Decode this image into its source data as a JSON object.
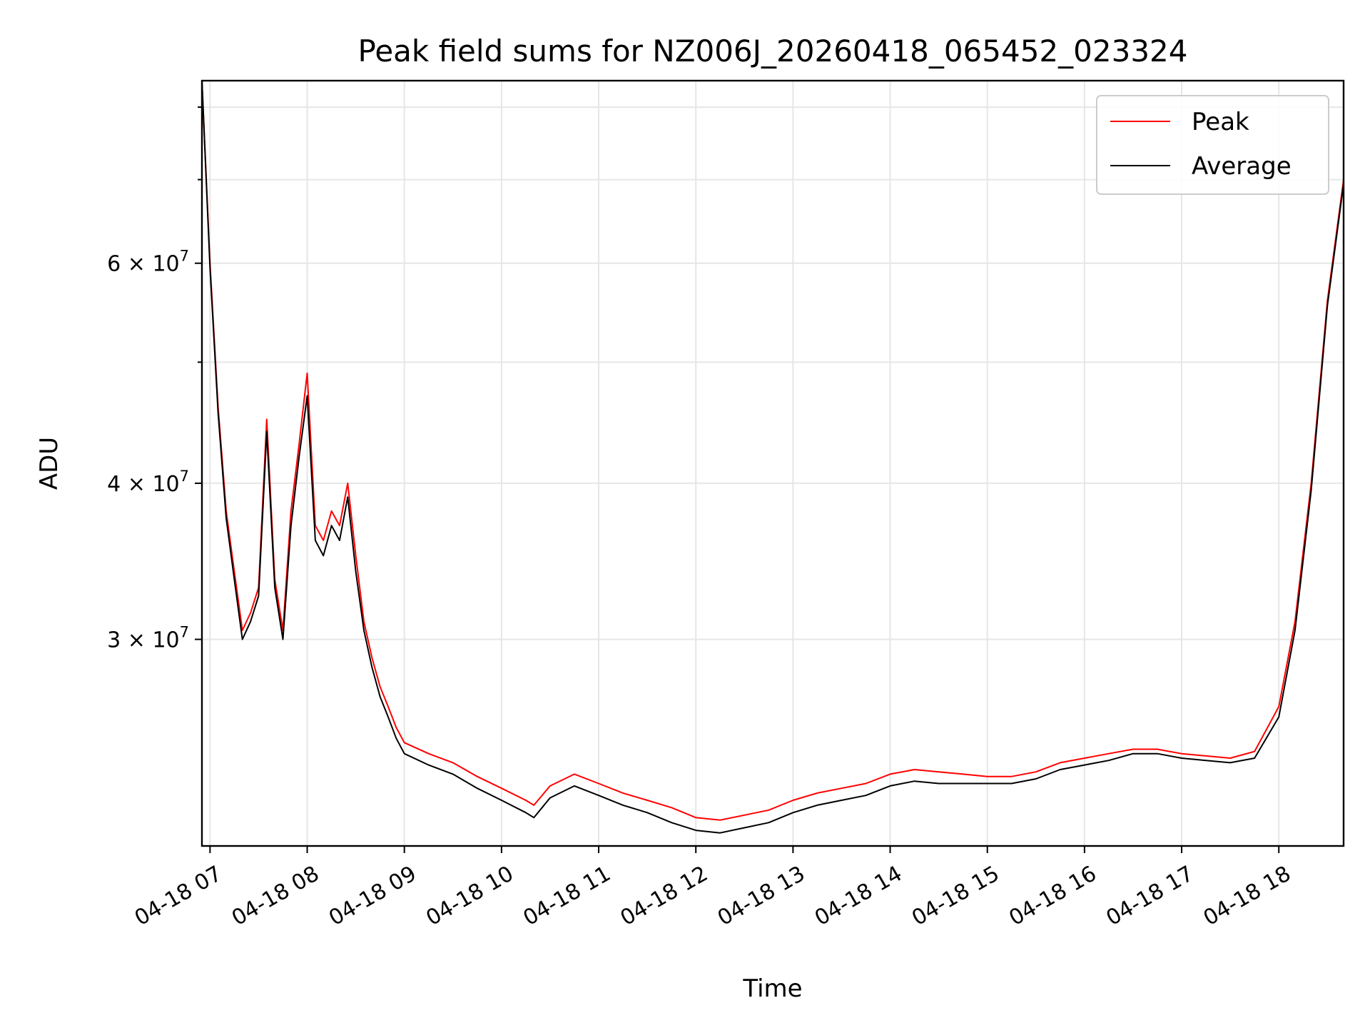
{
  "chart_data": {
    "type": "line",
    "title": "Peak field sums for NZ006J_20260418_065452_023324",
    "xlabel": "Time",
    "ylabel": "ADU",
    "yscale": "log",
    "grid": true,
    "legend_position": "top-right",
    "xlim": [
      "2026-04-18 06:55",
      "2026-04-18 18:40"
    ],
    "ylim": [
      20500000,
      84000000
    ],
    "x_tick_labels": [
      {
        "t": "2026-04-18 07:00",
        "label": "04-18 07"
      },
      {
        "t": "2026-04-18 08:00",
        "label": "04-18 08"
      },
      {
        "t": "2026-04-18 09:00",
        "label": "04-18 09"
      },
      {
        "t": "2026-04-18 10:00",
        "label": "04-18 10"
      },
      {
        "t": "2026-04-18 11:00",
        "label": "04-18 11"
      },
      {
        "t": "2026-04-18 12:00",
        "label": "04-18 12"
      },
      {
        "t": "2026-04-18 13:00",
        "label": "04-18 13"
      },
      {
        "t": "2026-04-18 14:00",
        "label": "04-18 14"
      },
      {
        "t": "2026-04-18 15:00",
        "label": "04-18 15"
      },
      {
        "t": "2026-04-18 16:00",
        "label": "04-18 16"
      },
      {
        "t": "2026-04-18 17:00",
        "label": "04-18 17"
      },
      {
        "t": "2026-04-18 18:00",
        "label": "04-18 18"
      }
    ],
    "y_major_ticks": [
      {
        "value": 30000000,
        "mantissa": "3",
        "exponent": "7"
      },
      {
        "value": 40000000,
        "mantissa": "4",
        "exponent": "7"
      },
      {
        "value": 60000000,
        "mantissa": "6",
        "exponent": "7"
      }
    ],
    "y_minor_ticks": [
      50000000,
      70000000,
      80000000
    ],
    "series": [
      {
        "name": "Peak",
        "color": "#ff0000",
        "x": [
          "06:55",
          "07:00",
          "07:05",
          "07:10",
          "07:15",
          "07:20",
          "07:25",
          "07:30",
          "07:35",
          "07:40",
          "07:45",
          "07:50",
          "07:55",
          "08:00",
          "08:05",
          "08:10",
          "08:15",
          "08:20",
          "08:25",
          "08:30",
          "08:35",
          "08:40",
          "08:45",
          "08:50",
          "08:55",
          "09:00",
          "09:15",
          "09:30",
          "09:45",
          "10:00",
          "10:15",
          "10:20",
          "10:30",
          "10:45",
          "11:00",
          "11:15",
          "11:30",
          "11:45",
          "12:00",
          "12:15",
          "12:30",
          "12:45",
          "13:00",
          "13:15",
          "13:30",
          "13:45",
          "14:00",
          "14:15",
          "14:30",
          "14:45",
          "15:00",
          "15:15",
          "15:30",
          "15:45",
          "16:00",
          "16:15",
          "16:30",
          "16:45",
          "17:00",
          "17:15",
          "17:30",
          "17:45",
          "18:00",
          "18:10",
          "18:20",
          "18:30",
          "18:40"
        ],
        "values": [
          84000000,
          60000000,
          46000000,
          38000000,
          34000000,
          30500000,
          31500000,
          33000000,
          45000000,
          33500000,
          30500000,
          38000000,
          43000000,
          49000000,
          37000000,
          36000000,
          38000000,
          37000000,
          40000000,
          35000000,
          31000000,
          29000000,
          27500000,
          26500000,
          25500000,
          24800000,
          24300000,
          23900000,
          23300000,
          22800000,
          22300000,
          22100000,
          22900000,
          23400000,
          23000000,
          22600000,
          22300000,
          22000000,
          21600000,
          21500000,
          21700000,
          21900000,
          22300000,
          22600000,
          22800000,
          23000000,
          23400000,
          23600000,
          23500000,
          23400000,
          23300000,
          23300000,
          23500000,
          23900000,
          24100000,
          24300000,
          24500000,
          24500000,
          24300000,
          24200000,
          24100000,
          24400000,
          26500000,
          31000000,
          40000000,
          56000000,
          70000000
        ]
      },
      {
        "name": "Average",
        "color": "#000000",
        "x": [
          "06:55",
          "07:00",
          "07:05",
          "07:10",
          "07:15",
          "07:20",
          "07:25",
          "07:30",
          "07:35",
          "07:40",
          "07:45",
          "07:50",
          "07:55",
          "08:00",
          "08:05",
          "08:10",
          "08:15",
          "08:20",
          "08:25",
          "08:30",
          "08:35",
          "08:40",
          "08:45",
          "08:50",
          "08:55",
          "09:00",
          "09:15",
          "09:30",
          "09:45",
          "10:00",
          "10:15",
          "10:20",
          "10:30",
          "10:45",
          "11:00",
          "11:15",
          "11:30",
          "11:45",
          "12:00",
          "12:15",
          "12:30",
          "12:45",
          "13:00",
          "13:15",
          "13:30",
          "13:45",
          "14:00",
          "14:15",
          "14:30",
          "14:45",
          "15:00",
          "15:15",
          "15:30",
          "15:45",
          "16:00",
          "16:15",
          "16:30",
          "16:45",
          "17:00",
          "17:15",
          "17:30",
          "17:45",
          "18:00",
          "18:10",
          "18:20",
          "18:30",
          "18:40"
        ],
        "values": [
          84000000,
          59500000,
          45500000,
          37500000,
          33500000,
          30000000,
          31000000,
          32500000,
          44000000,
          33000000,
          30000000,
          37000000,
          42000000,
          47000000,
          36000000,
          35000000,
          37000000,
          36000000,
          39000000,
          34000000,
          30500000,
          28500000,
          27000000,
          26000000,
          25000000,
          24300000,
          23800000,
          23400000,
          22800000,
          22300000,
          21800000,
          21600000,
          22400000,
          22900000,
          22500000,
          22100000,
          21800000,
          21400000,
          21100000,
          21000000,
          21200000,
          21400000,
          21800000,
          22100000,
          22300000,
          22500000,
          22900000,
          23100000,
          23000000,
          23000000,
          23000000,
          23000000,
          23200000,
          23600000,
          23800000,
          24000000,
          24300000,
          24300000,
          24100000,
          24000000,
          23900000,
          24100000,
          26000000,
          30500000,
          39500000,
          55500000,
          69500000
        ]
      }
    ]
  }
}
